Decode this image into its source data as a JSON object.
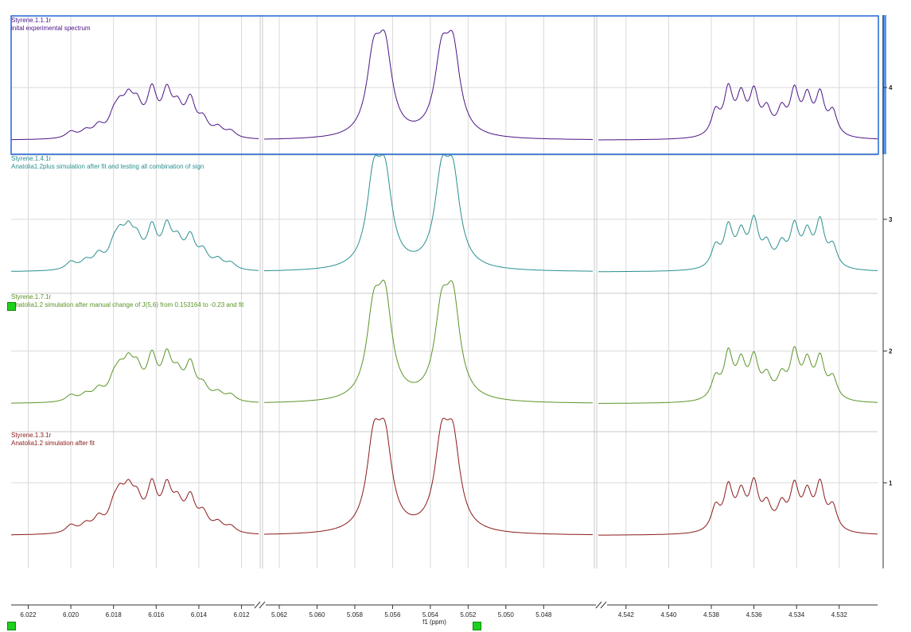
{
  "chart_data": {
    "type": "line",
    "xlabel": "f1 (ppm)",
    "x_direction": "reversed",
    "broken_x_axis": true,
    "axis_segments": [
      {
        "xlim": [
          6.0228,
          6.0112
        ],
        "ticks": [
          6.022,
          6.02,
          6.018,
          6.016,
          6.014,
          6.012
        ]
      },
      {
        "xlim": [
          5.0628,
          5.0454
        ],
        "ticks": [
          5.062,
          5.06,
          5.058,
          5.056,
          5.054,
          5.052,
          5.05,
          5.048
        ]
      },
      {
        "xlim": [
          4.5433,
          4.5302
        ],
        "ticks": [
          4.542,
          4.54,
          4.538,
          4.536,
          4.534,
          4.532
        ]
      }
    ],
    "ylim": [
      0.35,
      4.55
    ],
    "yticks": [
      1,
      2,
      3,
      4
    ],
    "grid": true,
    "series": [
      {
        "name": "Styrene.1.1.1r",
        "description": "inital experimental spectrum",
        "color": "#4b1586",
        "offset": 3.6,
        "peaks": [
          [
            6.02,
            0.05
          ],
          [
            6.0193,
            0.05
          ],
          [
            6.0187,
            0.08
          ],
          [
            6.018,
            0.12
          ],
          [
            6.0177,
            0.16
          ],
          [
            6.0173,
            0.22
          ],
          [
            6.0169,
            0.19
          ],
          [
            6.0162,
            0.32
          ],
          [
            6.0155,
            0.3
          ],
          [
            6.015,
            0.18
          ],
          [
            6.0144,
            0.26
          ],
          [
            6.0138,
            0.12
          ],
          [
            6.0131,
            0.07
          ],
          [
            6.0125,
            0.05
          ],
          [
            5.057,
            0.55
          ],
          [
            5.0564,
            0.6
          ],
          [
            5.0534,
            0.55
          ],
          [
            5.0528,
            0.6
          ],
          [
            4.5378,
            0.18
          ],
          [
            4.5372,
            0.34
          ],
          [
            4.5366,
            0.28
          ],
          [
            4.536,
            0.31
          ],
          [
            4.5354,
            0.18
          ],
          [
            4.5347,
            0.18
          ],
          [
            4.5341,
            0.32
          ],
          [
            4.5335,
            0.27
          ],
          [
            4.5329,
            0.3
          ],
          [
            4.5323,
            0.18
          ]
        ]
      },
      {
        "name": "Styrene.1.4.1r",
        "description": "Anatolia1.2plus simulation after fit and testing all combination of sign",
        "color": "#2b8f8f",
        "offset": 2.6,
        "peaks": [
          [
            6.02,
            0.06
          ],
          [
            6.0193,
            0.06
          ],
          [
            6.0187,
            0.1
          ],
          [
            6.018,
            0.13
          ],
          [
            6.0177,
            0.18
          ],
          [
            6.0173,
            0.22
          ],
          [
            6.0169,
            0.17
          ],
          [
            6.0162,
            0.28
          ],
          [
            6.0155,
            0.28
          ],
          [
            6.015,
            0.17
          ],
          [
            6.0144,
            0.22
          ],
          [
            6.0138,
            0.12
          ],
          [
            6.0131,
            0.07
          ],
          [
            6.0125,
            0.05
          ],
          [
            5.057,
            0.62
          ],
          [
            5.0564,
            0.62
          ],
          [
            5.0534,
            0.62
          ],
          [
            5.0528,
            0.62
          ],
          [
            4.5378,
            0.16
          ],
          [
            4.5372,
            0.3
          ],
          [
            4.5366,
            0.24
          ],
          [
            4.536,
            0.34
          ],
          [
            4.5354,
            0.16
          ],
          [
            4.5347,
            0.16
          ],
          [
            4.5341,
            0.3
          ],
          [
            4.5335,
            0.24
          ],
          [
            4.5329,
            0.34
          ],
          [
            4.5323,
            0.16
          ]
        ]
      },
      {
        "name": "Styrene.1.7.1r",
        "description": "Anatolia1.2 simulation after manual change of J(5,6) from 0.153164 to -0.23 and fit",
        "color": "#5b9428",
        "offset": 1.6,
        "peaks": [
          [
            6.02,
            0.05
          ],
          [
            6.0193,
            0.05
          ],
          [
            6.0187,
            0.08
          ],
          [
            6.018,
            0.12
          ],
          [
            6.0177,
            0.16
          ],
          [
            6.0173,
            0.22
          ],
          [
            6.0169,
            0.19
          ],
          [
            6.0162,
            0.3
          ],
          [
            6.0155,
            0.3
          ],
          [
            6.015,
            0.16
          ],
          [
            6.0144,
            0.26
          ],
          [
            6.0138,
            0.1
          ],
          [
            6.0131,
            0.06
          ],
          [
            6.0125,
            0.05
          ],
          [
            5.057,
            0.6
          ],
          [
            5.0564,
            0.68
          ],
          [
            5.0534,
            0.6
          ],
          [
            5.0528,
            0.68
          ],
          [
            4.5378,
            0.16
          ],
          [
            4.5372,
            0.34
          ],
          [
            4.5366,
            0.26
          ],
          [
            4.536,
            0.3
          ],
          [
            4.5354,
            0.16
          ],
          [
            4.5347,
            0.16
          ],
          [
            4.5341,
            0.34
          ],
          [
            4.5335,
            0.26
          ],
          [
            4.5329,
            0.3
          ],
          [
            4.5323,
            0.16
          ]
        ]
      },
      {
        "name": "Styrene.1.3.1r",
        "description": "Anatolia1.2 simulation after fit",
        "color": "#8b1a1a",
        "offset": 0.6,
        "peaks": [
          [
            6.02,
            0.06
          ],
          [
            6.0193,
            0.06
          ],
          [
            6.0187,
            0.1
          ],
          [
            6.018,
            0.14
          ],
          [
            6.0177,
            0.2
          ],
          [
            6.0173,
            0.24
          ],
          [
            6.0169,
            0.19
          ],
          [
            6.0162,
            0.32
          ],
          [
            6.0155,
            0.3
          ],
          [
            6.015,
            0.18
          ],
          [
            6.0144,
            0.24
          ],
          [
            6.0138,
            0.13
          ],
          [
            6.0131,
            0.07
          ],
          [
            6.0125,
            0.05
          ],
          [
            5.057,
            0.62
          ],
          [
            5.0564,
            0.62
          ],
          [
            5.0534,
            0.62
          ],
          [
            5.0528,
            0.62
          ],
          [
            4.5378,
            0.18
          ],
          [
            4.5372,
            0.32
          ],
          [
            4.5366,
            0.26
          ],
          [
            4.536,
            0.34
          ],
          [
            4.5354,
            0.18
          ],
          [
            4.5347,
            0.18
          ],
          [
            4.5341,
            0.32
          ],
          [
            4.5335,
            0.26
          ],
          [
            4.5329,
            0.34
          ],
          [
            4.5323,
            0.18
          ]
        ]
      }
    ]
  }
}
